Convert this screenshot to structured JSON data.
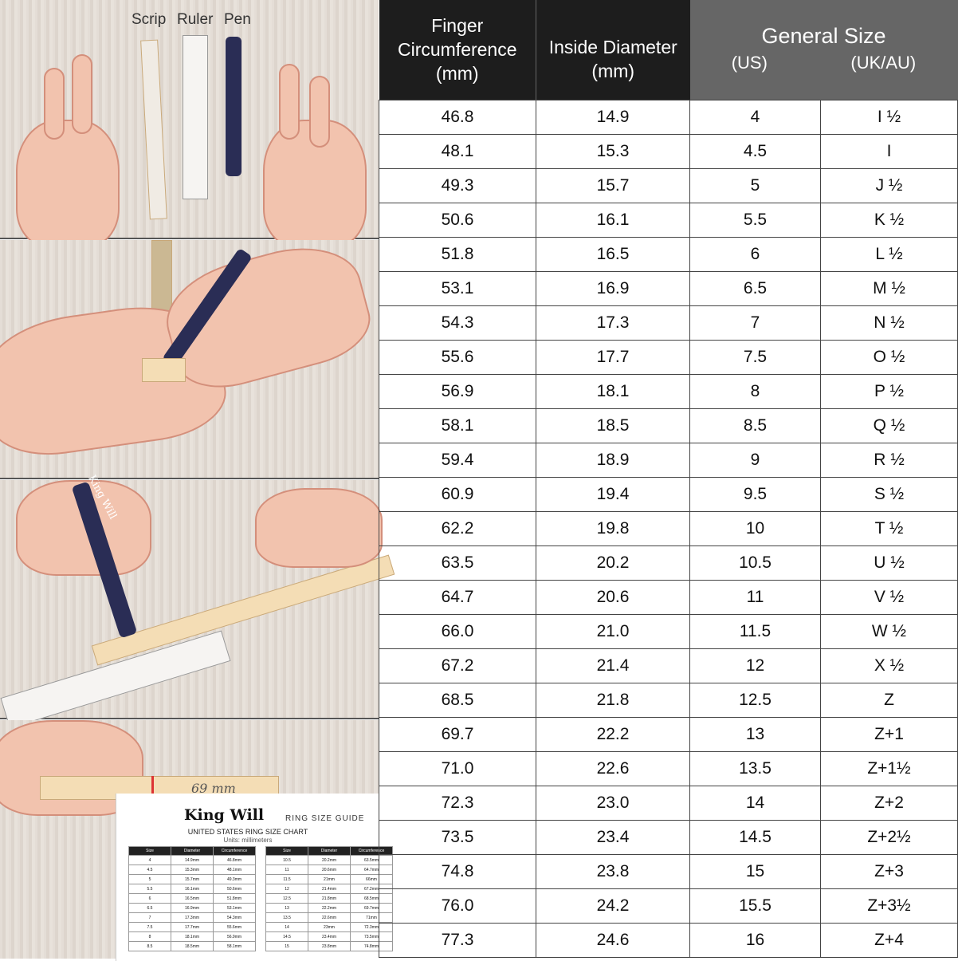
{
  "illustrations": {
    "step1_labels": [
      "Scrip",
      "Ruler",
      "Pen"
    ],
    "pen_brand": "King Will",
    "step4_mark": "69 mm",
    "guide": {
      "brand": "King Will",
      "subtitle": "RING SIZE GUIDE",
      "chart_title": "UNITED STATES RING SIZE CHART",
      "units": "Units: millimeters",
      "headers": [
        "Size",
        "Diameter",
        "Circumference"
      ],
      "left_rows": [
        [
          "4",
          "14.9mm",
          "46.8mm"
        ],
        [
          "4.5",
          "15.3mm",
          "48.1mm"
        ],
        [
          "5",
          "15.7mm",
          "49.3mm"
        ],
        [
          "5.5",
          "16.1mm",
          "50.6mm"
        ],
        [
          "6",
          "16.5mm",
          "51.8mm"
        ],
        [
          "6.5",
          "16.9mm",
          "53.1mm"
        ],
        [
          "7",
          "17.3mm",
          "54.3mm"
        ],
        [
          "7.5",
          "17.7mm",
          "55.6mm"
        ],
        [
          "8",
          "18.1mm",
          "56.9mm"
        ],
        [
          "8.5",
          "18.5mm",
          "58.1mm"
        ]
      ],
      "right_rows": [
        [
          "10.5",
          "20.2mm",
          "63.5mm"
        ],
        [
          "11",
          "20.6mm",
          "64.7mm"
        ],
        [
          "11.5",
          "21mm",
          "66mm"
        ],
        [
          "12",
          "21.4mm",
          "67.2mm"
        ],
        [
          "12.5",
          "21.8mm",
          "68.5mm"
        ],
        [
          "13",
          "22.2mm",
          "69.7mm"
        ],
        [
          "13.5",
          "22.6mm",
          "71mm"
        ],
        [
          "14",
          "23mm",
          "72.3mm"
        ],
        [
          "14.5",
          "23.4mm",
          "73.5mm"
        ],
        [
          "15",
          "23.8mm",
          "74.8mm"
        ]
      ]
    }
  },
  "table": {
    "headers": {
      "circumference": [
        "Finger",
        "Circumference",
        "(mm)"
      ],
      "diameter": [
        "Inside Diameter",
        "(mm)"
      ],
      "general": "General Size",
      "us": "(US)",
      "uk": "(UK/AU)"
    },
    "colors": {
      "header_dark": "#1d1d1d",
      "header_gray": "#666666"
    },
    "rows": [
      [
        "46.8",
        "14.9",
        "4",
        "I ½"
      ],
      [
        "48.1",
        "15.3",
        "4.5",
        "I"
      ],
      [
        "49.3",
        "15.7",
        "5",
        "J ½"
      ],
      [
        "50.6",
        "16.1",
        "5.5",
        "K ½"
      ],
      [
        "51.8",
        "16.5",
        "6",
        "L ½"
      ],
      [
        "53.1",
        "16.9",
        "6.5",
        "M ½"
      ],
      [
        "54.3",
        "17.3",
        "7",
        "N ½"
      ],
      [
        "55.6",
        "17.7",
        "7.5",
        "O ½"
      ],
      [
        "56.9",
        "18.1",
        "8",
        "P ½"
      ],
      [
        "58.1",
        "18.5",
        "8.5",
        "Q ½"
      ],
      [
        "59.4",
        "18.9",
        "9",
        "R ½"
      ],
      [
        "60.9",
        "19.4",
        "9.5",
        "S ½"
      ],
      [
        "62.2",
        "19.8",
        "10",
        "T ½"
      ],
      [
        "63.5",
        "20.2",
        "10.5",
        "U ½"
      ],
      [
        "64.7",
        "20.6",
        "11",
        "V ½"
      ],
      [
        "66.0",
        "21.0",
        "11.5",
        "W ½"
      ],
      [
        "67.2",
        "21.4",
        "12",
        "X ½"
      ],
      [
        "68.5",
        "21.8",
        "12.5",
        "Z"
      ],
      [
        "69.7",
        "22.2",
        "13",
        "Z+1"
      ],
      [
        "71.0",
        "22.6",
        "13.5",
        "Z+1½"
      ],
      [
        "72.3",
        "23.0",
        "14",
        "Z+2"
      ],
      [
        "73.5",
        "23.4",
        "14.5",
        "Z+2½"
      ],
      [
        "74.8",
        "23.8",
        "15",
        "Z+3"
      ],
      [
        "76.0",
        "24.2",
        "15.5",
        "Z+3½"
      ],
      [
        "77.3",
        "24.6",
        "16",
        "Z+4"
      ]
    ]
  }
}
